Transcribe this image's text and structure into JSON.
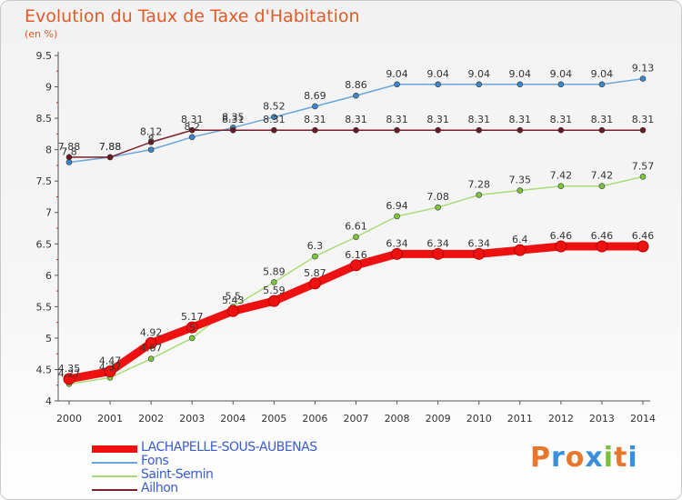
{
  "header": {
    "title": "Evolution du Taux de Taxe d'Habitation",
    "subtitle": "(en %)"
  },
  "logo": {
    "letters": [
      "P",
      "r",
      "o",
      "x",
      "i",
      "t",
      "i"
    ],
    "colors": [
      "#e8762b",
      "#3a8fd8",
      "#e8762b",
      "#3a8fd8",
      "#7cbf3a",
      "#e8762b",
      "#3a8fd8"
    ]
  },
  "chart_data": {
    "type": "line",
    "x": [
      "2000",
      "2001",
      "2002",
      "2003",
      "2004",
      "2005",
      "2006",
      "2007",
      "2008",
      "2009",
      "2010",
      "2011",
      "2012",
      "2013",
      "2014"
    ],
    "ylim": [
      4,
      9.5
    ],
    "yticks": [
      "4",
      "4.5",
      "5",
      "5.5",
      "6",
      "6.5",
      "7",
      "7.5",
      "8",
      "8.5",
      "9",
      "9.5"
    ],
    "grid": false,
    "legend_position": "bottom",
    "series": [
      {
        "name": "Fons",
        "color": "#6aa6d8",
        "marker": "#3d86c9",
        "width": 1.5,
        "values": [
          7.8,
          7.88,
          8.0,
          8.2,
          8.35,
          8.52,
          8.69,
          8.86,
          9.04,
          9.04,
          9.04,
          9.04,
          9.04,
          9.04,
          9.13
        ],
        "labels": [
          "7.8",
          "7.88",
          "8",
          "8.2",
          "8.35",
          "8.52",
          "8.69",
          "8.86",
          "9.04",
          "9.04",
          "9.04",
          "9.04",
          "9.04",
          "9.04",
          "9.13"
        ]
      },
      {
        "name": "Ailhon",
        "color": "#7a1f2b",
        "marker": "#6b1a24",
        "width": 1.5,
        "values": [
          7.88,
          7.88,
          8.12,
          8.31,
          8.31,
          8.31,
          8.31,
          8.31,
          8.31,
          8.31,
          8.31,
          8.31,
          8.31,
          8.31,
          8.31
        ],
        "labels": [
          "7.88",
          "7.88",
          "8.12",
          "8.31",
          "8.31",
          "8.31",
          "8.31",
          "8.31",
          "8.31",
          "8.31",
          "8.31",
          "8.31",
          "8.31",
          "8.31",
          "8.31"
        ]
      },
      {
        "name": "Saint-Sernin",
        "color": "#a8dc78",
        "marker": "#7cc63c",
        "width": 1.5,
        "values": [
          4.27,
          4.37,
          4.67,
          5.0,
          5.5,
          5.89,
          6.3,
          6.61,
          6.94,
          7.08,
          7.28,
          7.35,
          7.42,
          7.42,
          7.57
        ],
        "labels": [
          "4.27",
          "4.37",
          "4.67",
          "5",
          "5.5",
          "5.89",
          "6.3",
          "6.61",
          "6.94",
          "7.08",
          "7.28",
          "7.35",
          "7.42",
          "7.42",
          "7.57"
        ]
      },
      {
        "name": "LACHAPELLE-SOUS-AUBENAS",
        "color": "#ee1111",
        "marker": "#ee1111",
        "width": 9,
        "values": [
          4.35,
          4.47,
          4.92,
          5.17,
          5.43,
          5.59,
          5.87,
          6.16,
          6.34,
          6.34,
          6.34,
          6.4,
          6.46,
          6.46,
          6.46
        ],
        "labels": [
          "4.35",
          "4.47",
          "4.92",
          "5.17",
          "5.43",
          "5.59",
          "5.87",
          "6.16",
          "6.34",
          "6.34",
          "6.34",
          "6.4",
          "6.46",
          "6.46",
          "6.46"
        ]
      }
    ],
    "legend_order": [
      3,
      0,
      2,
      1
    ]
  }
}
